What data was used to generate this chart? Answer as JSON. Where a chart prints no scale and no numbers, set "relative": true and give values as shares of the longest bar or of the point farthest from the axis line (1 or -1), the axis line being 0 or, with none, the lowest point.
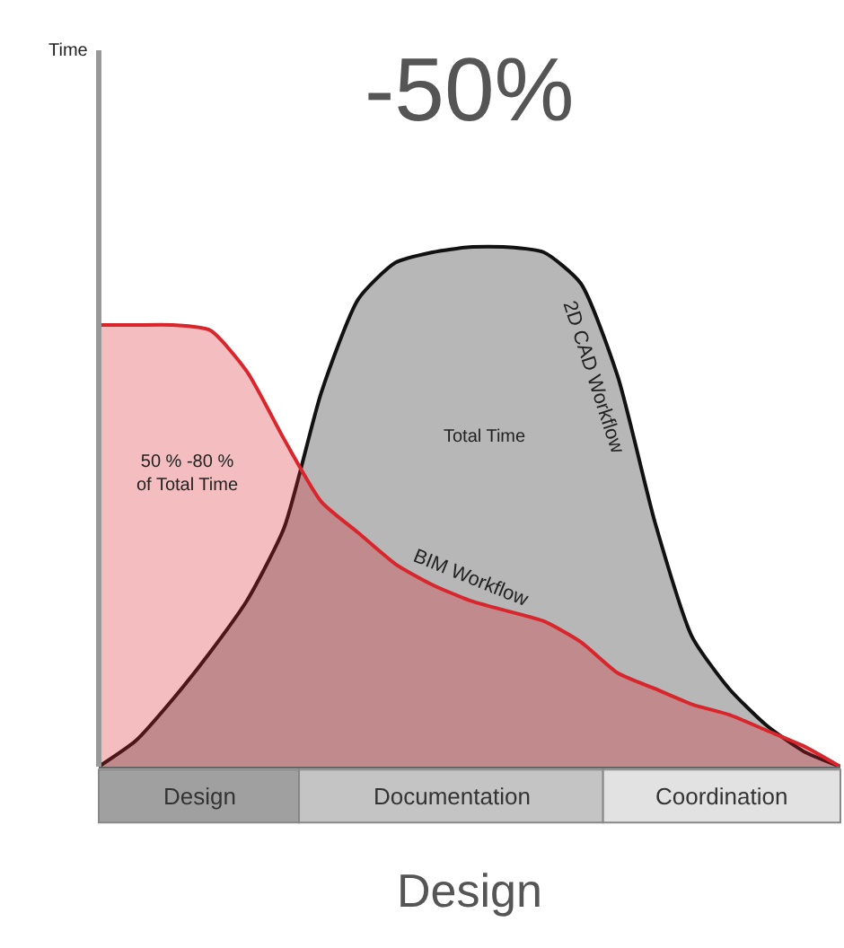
{
  "chart_data": {
    "type": "area",
    "relative": true,
    "title": "-50%",
    "subtitle": "Design",
    "annotations": [
      "Time",
      "50 % -80 % of Total Time",
      "Total Time",
      "Design",
      "Documentation",
      "Coordination"
    ],
    "categories": [
      null,
      null,
      null,
      null,
      null,
      null,
      null,
      null,
      null,
      null,
      null,
      null,
      null,
      null,
      null,
      null,
      null,
      null,
      null,
      null,
      null
    ],
    "series": [
      {
        "name": "2D CAD Workflow",
        "color": "#111111",
        "values": [
          0,
          0.05,
          0.13,
          0.22,
          0.32,
          0.46,
          0.72,
          0.9,
          0.97,
          0.99,
          1.0,
          1.0,
          0.99,
          0.93,
          0.75,
          0.47,
          0.25,
          0.15,
          0.08,
          0.03,
          0
        ]
      },
      {
        "name": "BIM Workflow",
        "color": "#d9262c",
        "values": [
          0.85,
          0.85,
          0.85,
          0.84,
          0.76,
          0.63,
          0.51,
          0.45,
          0.39,
          0.35,
          0.32,
          0.3,
          0.28,
          0.24,
          0.18,
          0.15,
          0.12,
          0.1,
          0.07,
          0.04,
          0
        ]
      }
    ]
  }
}
